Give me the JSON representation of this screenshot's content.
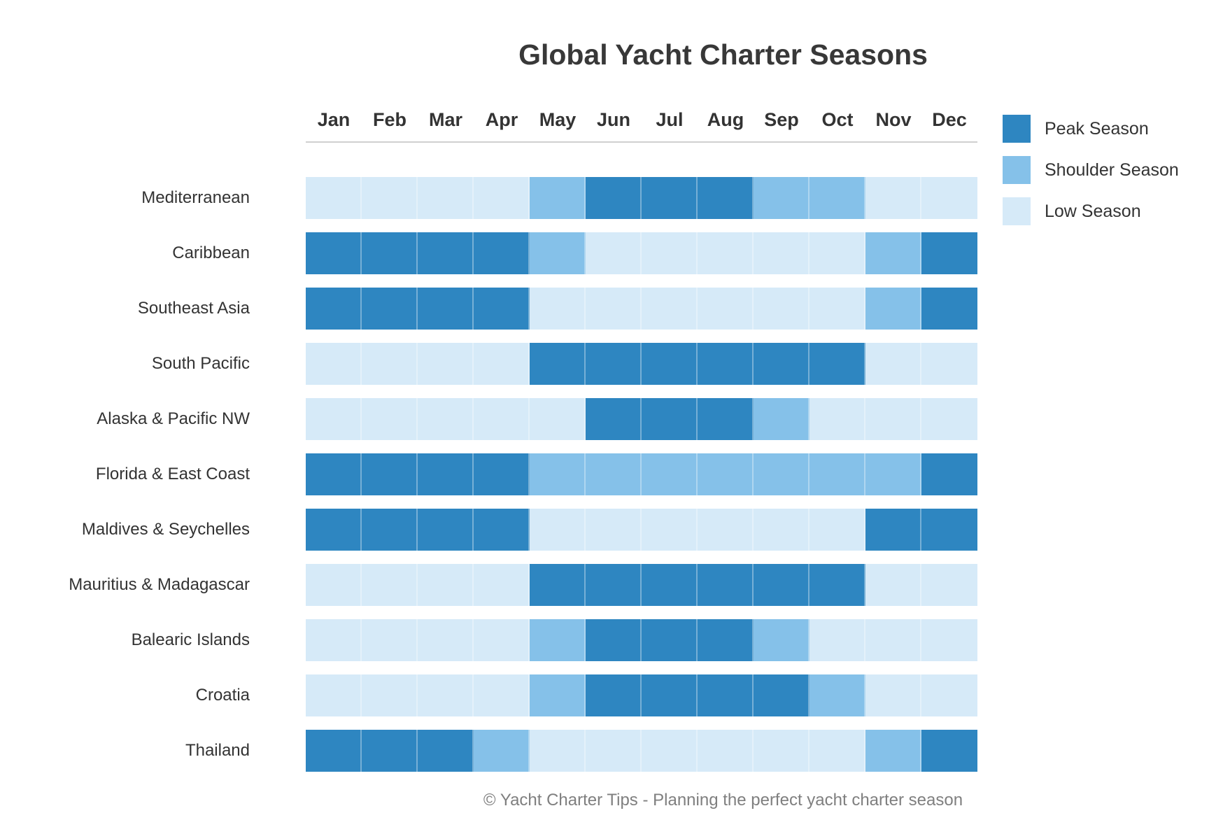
{
  "title": "Global Yacht Charter Seasons",
  "caption": "© Yacht Charter Tips - Planning the perfect yacht charter season",
  "colors": {
    "peak": "#2E86C1",
    "shoulder": "#85C1E9",
    "low": "#D6EAF8"
  },
  "legend": [
    {
      "key": "peak",
      "label": "Peak Season"
    },
    {
      "key": "shoulder",
      "label": "Shoulder Season"
    },
    {
      "key": "low",
      "label": "Low Season"
    }
  ],
  "chart_data": {
    "type": "heatmap",
    "title": "Global Yacht Charter Seasons",
    "legend_position": "right",
    "grid": false,
    "categories": [
      "Jan",
      "Feb",
      "Mar",
      "Apr",
      "May",
      "Jun",
      "Jul",
      "Aug",
      "Sep",
      "Oct",
      "Nov",
      "Dec"
    ],
    "value_labels": {
      "peak": "Peak Season",
      "shoulder": "Shoulder Season",
      "low": "Low Season"
    },
    "rows": [
      {
        "region": "Mediterranean",
        "seasons": [
          "low",
          "low",
          "low",
          "low",
          "shoulder",
          "peak",
          "peak",
          "peak",
          "shoulder",
          "shoulder",
          "low",
          "low"
        ]
      },
      {
        "region": "Caribbean",
        "seasons": [
          "peak",
          "peak",
          "peak",
          "peak",
          "shoulder",
          "low",
          "low",
          "low",
          "low",
          "low",
          "shoulder",
          "peak"
        ]
      },
      {
        "region": "Southeast Asia",
        "seasons": [
          "peak",
          "peak",
          "peak",
          "peak",
          "low",
          "low",
          "low",
          "low",
          "low",
          "low",
          "shoulder",
          "peak"
        ]
      },
      {
        "region": "South Pacific",
        "seasons": [
          "low",
          "low",
          "low",
          "low",
          "peak",
          "peak",
          "peak",
          "peak",
          "peak",
          "peak",
          "low",
          "low"
        ]
      },
      {
        "region": "Alaska & Pacific NW",
        "seasons": [
          "low",
          "low",
          "low",
          "low",
          "low",
          "peak",
          "peak",
          "peak",
          "shoulder",
          "low",
          "low",
          "low"
        ]
      },
      {
        "region": "Florida & East Coast",
        "seasons": [
          "peak",
          "peak",
          "peak",
          "peak",
          "shoulder",
          "shoulder",
          "shoulder",
          "shoulder",
          "shoulder",
          "shoulder",
          "shoulder",
          "peak"
        ]
      },
      {
        "region": "Maldives & Seychelles",
        "seasons": [
          "peak",
          "peak",
          "peak",
          "peak",
          "low",
          "low",
          "low",
          "low",
          "low",
          "low",
          "peak",
          "peak"
        ]
      },
      {
        "region": "Mauritius & Madagascar",
        "seasons": [
          "low",
          "low",
          "low",
          "low",
          "peak",
          "peak",
          "peak",
          "peak",
          "peak",
          "peak",
          "low",
          "low"
        ]
      },
      {
        "region": "Balearic Islands",
        "seasons": [
          "low",
          "low",
          "low",
          "low",
          "shoulder",
          "peak",
          "peak",
          "peak",
          "shoulder",
          "low",
          "low",
          "low"
        ]
      },
      {
        "region": "Croatia",
        "seasons": [
          "low",
          "low",
          "low",
          "low",
          "shoulder",
          "peak",
          "peak",
          "peak",
          "peak",
          "shoulder",
          "low",
          "low"
        ]
      },
      {
        "region": "Thailand",
        "seasons": [
          "peak",
          "peak",
          "peak",
          "shoulder",
          "low",
          "low",
          "low",
          "low",
          "low",
          "low",
          "shoulder",
          "peak"
        ]
      }
    ]
  }
}
